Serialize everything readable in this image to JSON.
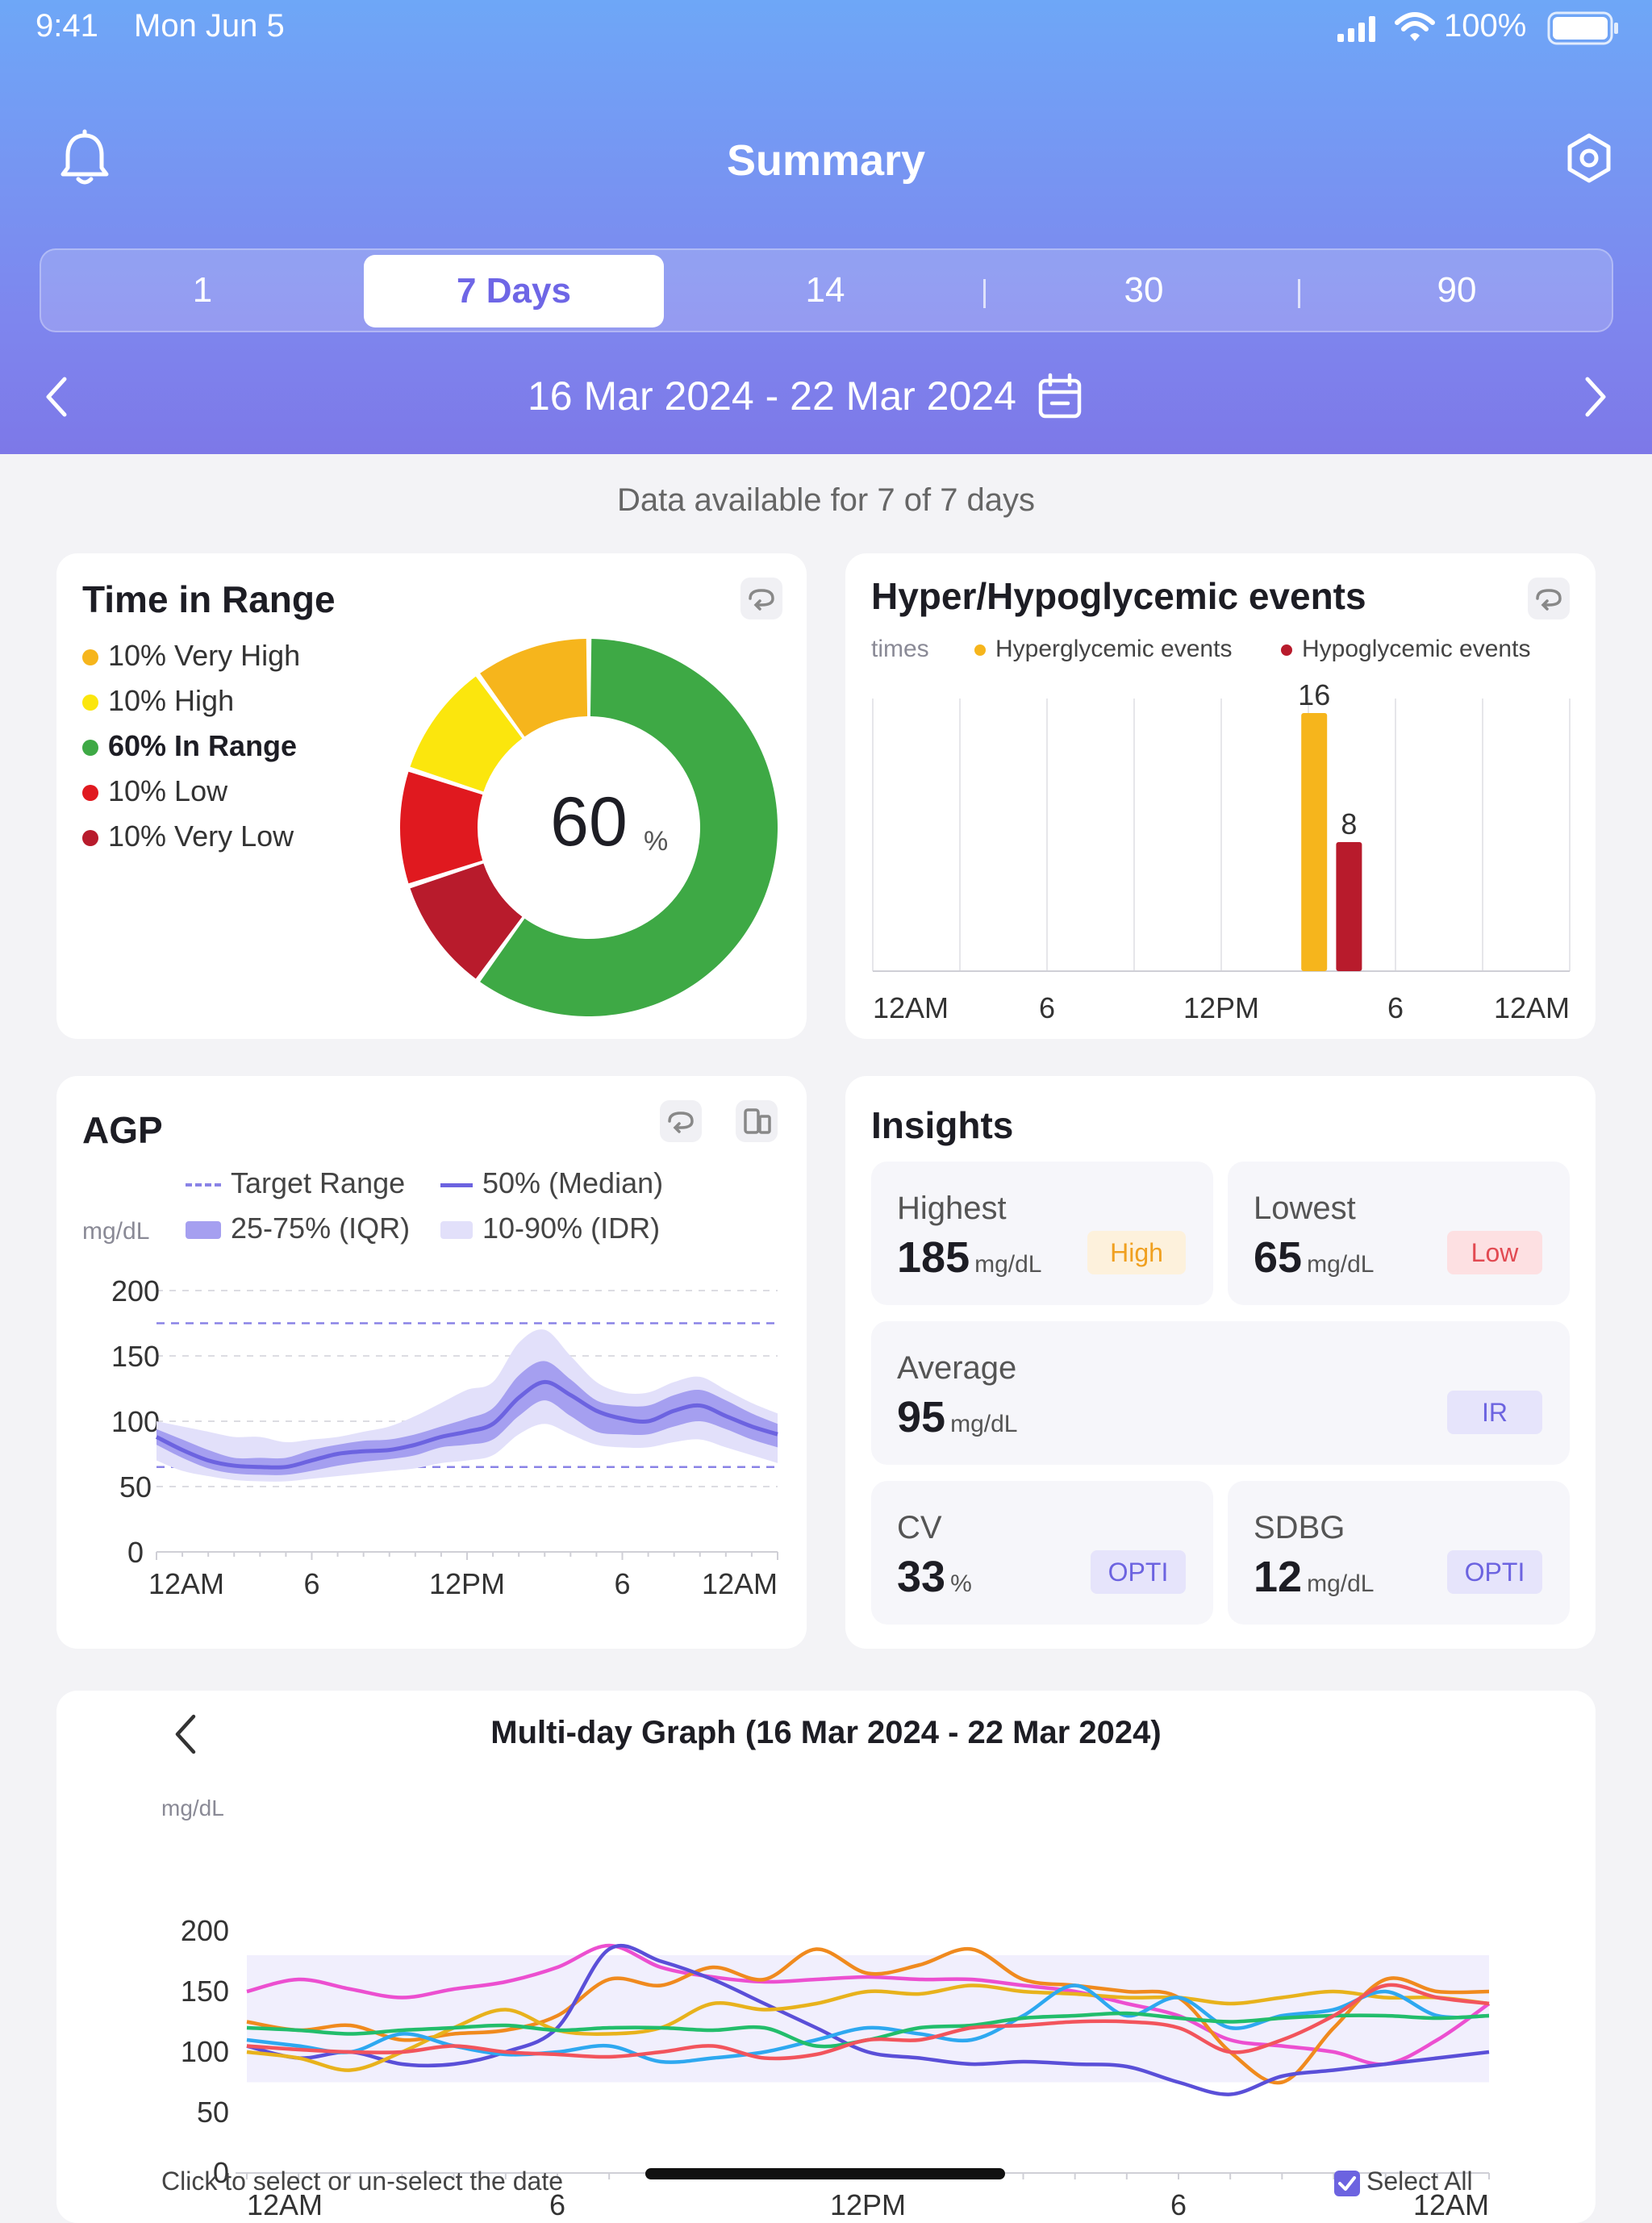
{
  "status_bar": {
    "time": "9:41",
    "date": "Mon Jun 5",
    "battery": "100%"
  },
  "header": {
    "title": "Summary",
    "bell_icon": "bell-icon",
    "settings_icon": "hexagon-settings-icon"
  },
  "range_tabs": [
    {
      "label": "1",
      "active": false
    },
    {
      "label": "7 Days",
      "active": true
    },
    {
      "label": "14",
      "active": false
    },
    {
      "label": "30",
      "active": false
    },
    {
      "label": "90",
      "active": false
    }
  ],
  "date_range": {
    "label": "16 Mar 2024 - 22 Mar 2024"
  },
  "availability": "Data available for 7 of 7 days",
  "time_in_range": {
    "title": "Time in Range",
    "center_value": "60",
    "center_unit": "%",
    "legend": [
      {
        "label": "10% Very High",
        "color": "#f6b51c",
        "bold": false
      },
      {
        "label": "10% High",
        "color": "#fbe60d",
        "bold": false
      },
      {
        "label": "60% In Range",
        "color": "#3ea945",
        "bold": true
      },
      {
        "label": "10% Low",
        "color": "#e0191f",
        "bold": false
      },
      {
        "label": "10% Very Low",
        "color": "#b81b2c",
        "bold": false
      }
    ]
  },
  "events": {
    "title": "Hyper/Hypoglycemic events",
    "y_unit": "times",
    "legend_hyper": "Hyperglycemic events",
    "legend_hypo": "Hypoglycemic events",
    "x_ticks": [
      "12AM",
      "6",
      "12PM",
      "6",
      "12AM"
    ]
  },
  "agp": {
    "title": "AGP",
    "legend": {
      "target": "Target Range",
      "median": "50% (Median)",
      "iqr": "25-75% (IQR)",
      "idr": "10-90% (IDR)"
    },
    "y_unit": "mg/dL",
    "x_ticks": [
      "12AM",
      "6",
      "12PM",
      "6",
      "12AM"
    ]
  },
  "insights": {
    "title": "Insights",
    "highest": {
      "label": "Highest",
      "value": "185",
      "unit": "mg/dL",
      "badge": "High"
    },
    "lowest": {
      "label": "Lowest",
      "value": "65",
      "unit": "mg/dL",
      "badge": "Low"
    },
    "average": {
      "label": "Average",
      "value": "95",
      "unit": "mg/dL",
      "badge": "IR"
    },
    "cv": {
      "label": "CV",
      "value": "33",
      "unit": "%",
      "badge": "OPTI"
    },
    "sdbg": {
      "label": "SDBG",
      "value": "12",
      "unit": "mg/dL",
      "badge": "OPTI"
    }
  },
  "multiday": {
    "title": "Multi-day Graph (16 Mar 2024 - 22 Mar 2024)",
    "y_unit": "mg/dL",
    "x_ticks": [
      "12AM",
      "6",
      "12PM",
      "6",
      "12AM"
    ],
    "footer_hint": "Click to select or un-select the date",
    "select_all": "Select All"
  },
  "chart_data": [
    {
      "type": "pie",
      "title": "Time in Range",
      "categories": [
        "Very High",
        "High",
        "In Range",
        "Low",
        "Very Low"
      ],
      "values": [
        10,
        10,
        60,
        10,
        10
      ],
      "colors": [
        "#f6b51c",
        "#fbe60d",
        "#3ea945",
        "#e0191f",
        "#b81b2c"
      ]
    },
    {
      "type": "bar",
      "title": "Hyper/Hypoglycemic events",
      "ylabel": "times",
      "x_range": [
        "12AM",
        "12AM"
      ],
      "series": [
        {
          "name": "Hyperglycemic events",
          "x_hour": 15.2,
          "value": 16,
          "color": "#f6b51c"
        },
        {
          "name": "Hypoglycemic events",
          "x_hour": 16.4,
          "value": 8,
          "color": "#b81b2c"
        }
      ],
      "ylim": [
        0,
        16
      ]
    },
    {
      "type": "area",
      "title": "AGP",
      "ylabel": "mg/dL",
      "ylim": [
        0,
        200
      ],
      "yticks": [
        0,
        50,
        100,
        150,
        200
      ],
      "target_range": [
        65,
        175
      ],
      "x_hours": [
        0,
        1,
        2,
        3,
        4,
        5,
        6,
        7,
        8,
        9,
        10,
        11,
        12,
        13,
        14,
        15,
        16,
        17,
        18,
        19,
        20,
        21,
        22,
        23,
        24
      ],
      "median": [
        88,
        78,
        70,
        66,
        65,
        65,
        70,
        75,
        77,
        78,
        82,
        88,
        92,
        98,
        118,
        130,
        120,
        108,
        102,
        100,
        108,
        112,
        104,
        96,
        90
      ],
      "iqr_low": [
        82,
        72,
        64,
        60,
        59,
        59,
        62,
        66,
        69,
        71,
        74,
        80,
        82,
        86,
        104,
        116,
        104,
        92,
        90,
        90,
        96,
        100,
        94,
        86,
        80
      ],
      "iqr_high": [
        94,
        86,
        78,
        72,
        72,
        72,
        78,
        82,
        85,
        86,
        90,
        96,
        102,
        110,
        135,
        146,
        132,
        116,
        112,
        112,
        120,
        124,
        116,
        106,
        98
      ],
      "idr_low": [
        70,
        62,
        58,
        55,
        54,
        54,
        56,
        58,
        60,
        62,
        64,
        68,
        70,
        74,
        90,
        98,
        90,
        82,
        80,
        80,
        84,
        86,
        80,
        74,
        68
      ],
      "idr_high": [
        100,
        96,
        92,
        88,
        88,
        84,
        86,
        88,
        92,
        96,
        104,
        114,
        124,
        130,
        160,
        170,
        150,
        130,
        122,
        122,
        130,
        134,
        124,
        114,
        106
      ]
    },
    {
      "type": "line",
      "title": "Multi-day Graph (16 Mar 2024 - 22 Mar 2024)",
      "ylabel": "mg/dL",
      "ylim": [
        0,
        200
      ],
      "yticks": [
        0,
        50,
        100,
        150,
        200
      ],
      "target_range": [
        75,
        180
      ],
      "x_hours": [
        0,
        1,
        2,
        3,
        4,
        5,
        6,
        7,
        8,
        9,
        10,
        11,
        12,
        13,
        14,
        15,
        16,
        17,
        18,
        19,
        20,
        21,
        22,
        23,
        24
      ],
      "series": [
        {
          "color": "#ec4fd0",
          "values": [
            150,
            160,
            152,
            145,
            152,
            158,
            170,
            188,
            170,
            162,
            158,
            160,
            162,
            160,
            160,
            155,
            150,
            140,
            130,
            110,
            105,
            100,
            90,
            110,
            140
          ]
        },
        {
          "color": "#f08a1e",
          "values": [
            125,
            118,
            122,
            110,
            115,
            118,
            130,
            160,
            155,
            170,
            160,
            185,
            165,
            172,
            185,
            160,
            155,
            150,
            145,
            100,
            75,
            120,
            160,
            150,
            150
          ]
        },
        {
          "color": "#5a4fd8",
          "values": [
            105,
            95,
            100,
            90,
            90,
            100,
            120,
            185,
            175,
            160,
            140,
            120,
            100,
            95,
            90,
            92,
            90,
            88,
            75,
            65,
            80,
            85,
            90,
            95,
            100
          ]
        },
        {
          "color": "#e8b21c",
          "values": [
            100,
            95,
            85,
            100,
            120,
            135,
            118,
            115,
            120,
            140,
            135,
            140,
            150,
            148,
            155,
            150,
            148,
            145,
            145,
            140,
            145,
            150,
            145,
            145,
            140
          ]
        },
        {
          "color": "#2ea8f0",
          "values": [
            110,
            105,
            100,
            115,
            105,
            98,
            100,
            105,
            92,
            95,
            100,
            110,
            120,
            115,
            110,
            130,
            155,
            130,
            145,
            120,
            130,
            135,
            150,
            130,
            130
          ]
        },
        {
          "color": "#22bd6b",
          "values": [
            120,
            118,
            115,
            118,
            120,
            122,
            118,
            120,
            120,
            118,
            120,
            105,
            110,
            120,
            122,
            128,
            130,
            132,
            128,
            125,
            128,
            130,
            130,
            128,
            130
          ]
        },
        {
          "color": "#f2545c",
          "values": [
            105,
            102,
            100,
            100,
            105,
            100,
            98,
            96,
            100,
            105,
            95,
            98,
            110,
            110,
            120,
            122,
            125,
            125,
            120,
            100,
            110,
            130,
            155,
            145,
            140
          ]
        }
      ]
    }
  ]
}
